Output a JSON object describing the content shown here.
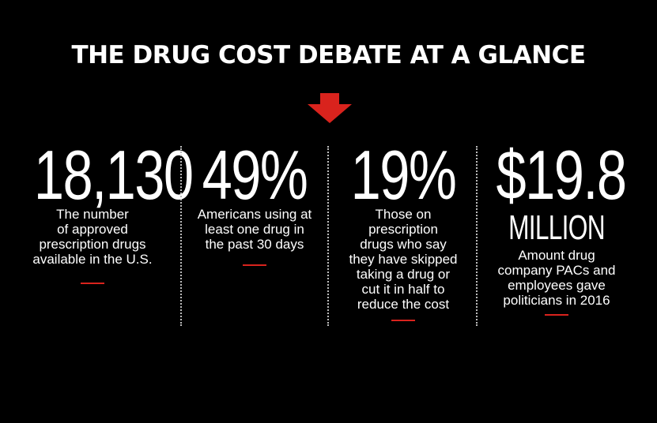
{
  "title": "THE DRUG COST DEBATE AT A GLANCE",
  "accent_color": "#d9231d",
  "arrow_icon": "arrow-down-icon",
  "stats": [
    {
      "value": "18,130",
      "unit": "",
      "description": "The number\nof approved\nprescription drugs\navailable in the U.S."
    },
    {
      "value": "49%",
      "unit": "",
      "description": "Americans using at\nleast one drug in\nthe past 30 days"
    },
    {
      "value": "19%",
      "unit": "",
      "description": "Those on\nprescription\ndrugs who say\nthey have skipped\ntaking a drug or\ncut it in half to\nreduce the cost"
    },
    {
      "value": "$19.8",
      "unit": "MILLION",
      "description": "Amount drug\ncompany PACs and\nemployees  gave\npoliticians in 2016"
    }
  ]
}
